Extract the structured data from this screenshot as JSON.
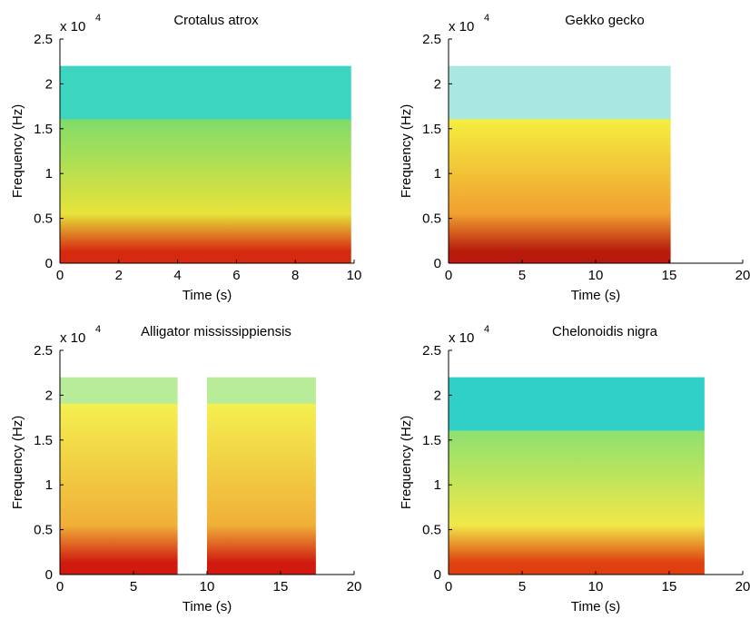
{
  "chart_data": [
    {
      "type": "spectrogram",
      "title": "Crotalus atrox",
      "xlabel": "Time (s)",
      "ylabel": "Frequency (Hz)",
      "y_offset_label": "x 10",
      "y_offset_exponent": "4",
      "xlim": [
        0,
        10
      ],
      "xticks": [
        0,
        2,
        4,
        6,
        8,
        10
      ],
      "ylim": [
        0,
        25000
      ],
      "yticks": [
        0,
        {
          "value": 5000,
          "label": "0.5"
        },
        {
          "value": 10000,
          "label": "1"
        },
        {
          "value": 15000,
          "label": "1.5"
        },
        {
          "value": 20000,
          "label": "2"
        },
        {
          "value": 25000,
          "label": "2.5"
        }
      ],
      "segments": [
        [
          0,
          9.9
        ]
      ],
      "fmax": 22000,
      "band_edge": 16000,
      "colors": [
        "#d62a10",
        "#e8e23a",
        "#7fdc6a",
        "#3cd6c0"
      ]
    },
    {
      "type": "spectrogram",
      "title": "Gekko gecko",
      "xlabel": "Time (s)",
      "ylabel": "Frequency (Hz)",
      "y_offset_label": "x 10",
      "y_offset_exponent": "4",
      "xlim": [
        0,
        20
      ],
      "xticks": [
        0,
        5,
        10,
        15,
        20
      ],
      "ylim": [
        0,
        25000
      ],
      "yticks": [
        0,
        {
          "value": 5000,
          "label": "0.5"
        },
        {
          "value": 10000,
          "label": "1"
        },
        {
          "value": 15000,
          "label": "1.5"
        },
        {
          "value": 20000,
          "label": "2"
        },
        {
          "value": 25000,
          "label": "2.5"
        }
      ],
      "segments": [
        [
          0,
          15.1
        ]
      ],
      "fmax": 22000,
      "band_edge": 16000,
      "colors": [
        "#b81a0c",
        "#f0a030",
        "#f4ee40",
        "#a8e8e0"
      ]
    },
    {
      "type": "spectrogram",
      "title": "Alligator mississippiensis",
      "xlabel": "Time (s)",
      "ylabel": "Frequency (Hz)",
      "y_offset_label": "x 10",
      "y_offset_exponent": "4",
      "xlim": [
        0,
        20
      ],
      "xticks": [
        0,
        5,
        10,
        15,
        20
      ],
      "ylim": [
        0,
        25000
      ],
      "yticks": [
        0,
        {
          "value": 5000,
          "label": "0.5"
        },
        {
          "value": 10000,
          "label": "1"
        },
        {
          "value": 15000,
          "label": "1.5"
        },
        {
          "value": 20000,
          "label": "2"
        },
        {
          "value": 25000,
          "label": "2.5"
        }
      ],
      "segments": [
        [
          0,
          8
        ],
        [
          10,
          17.4
        ]
      ],
      "fmax": 22000,
      "band_edge": 19000,
      "colors": [
        "#d01a10",
        "#f0b038",
        "#f4f050",
        "#b8ec98"
      ]
    },
    {
      "type": "spectrogram",
      "title": "Chelonoidis nigra",
      "xlabel": "Time (s)",
      "ylabel": "Frequency (Hz)",
      "y_offset_label": "x 10",
      "y_offset_exponent": "4",
      "xlim": [
        0,
        20
      ],
      "xticks": [
        0,
        5,
        10,
        15,
        20
      ],
      "ylim": [
        0,
        25000
      ],
      "yticks": [
        0,
        {
          "value": 5000,
          "label": "0.5"
        },
        {
          "value": 10000,
          "label": "1"
        },
        {
          "value": 15000,
          "label": "1.5"
        },
        {
          "value": 20000,
          "label": "2"
        },
        {
          "value": 25000,
          "label": "2.5"
        }
      ],
      "segments": [
        [
          0,
          17.4
        ]
      ],
      "fmax": 22000,
      "band_edge": 16000,
      "colors": [
        "#e04010",
        "#f0e848",
        "#8ee070",
        "#30d0c8"
      ]
    }
  ]
}
